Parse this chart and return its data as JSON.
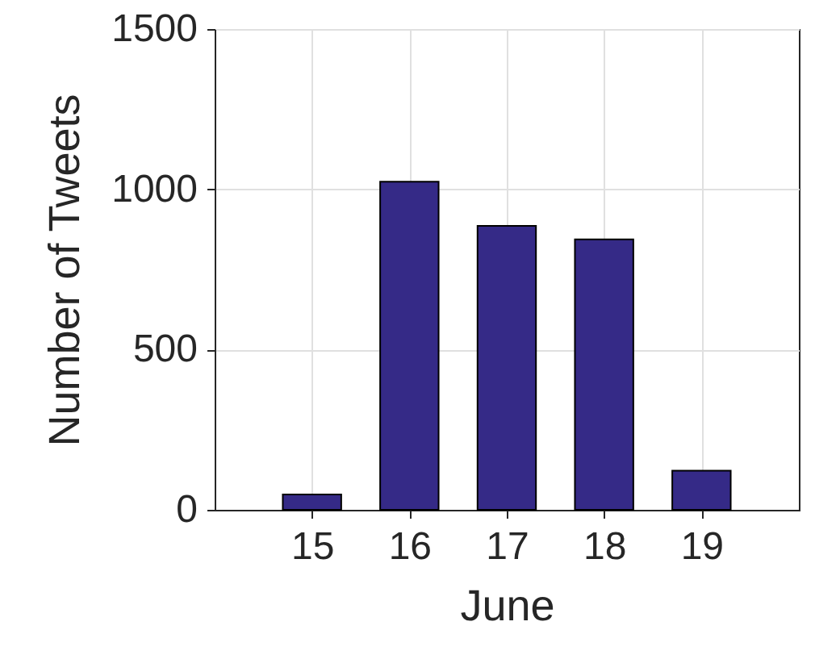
{
  "chart_data": {
    "type": "bar",
    "xlabel": "June",
    "ylabel": "Number of Tweets",
    "x": [
      15,
      16,
      17,
      18,
      19
    ],
    "values": [
      48,
      1024,
      886,
      844,
      122
    ],
    "color": "#352a87",
    "xlim": [
      14,
      20
    ],
    "xticks": [
      15,
      16,
      17,
      18,
      19
    ],
    "ylim": [
      0,
      1500
    ],
    "yticks": [
      0,
      500,
      1000,
      1500
    ],
    "grid": true
  }
}
